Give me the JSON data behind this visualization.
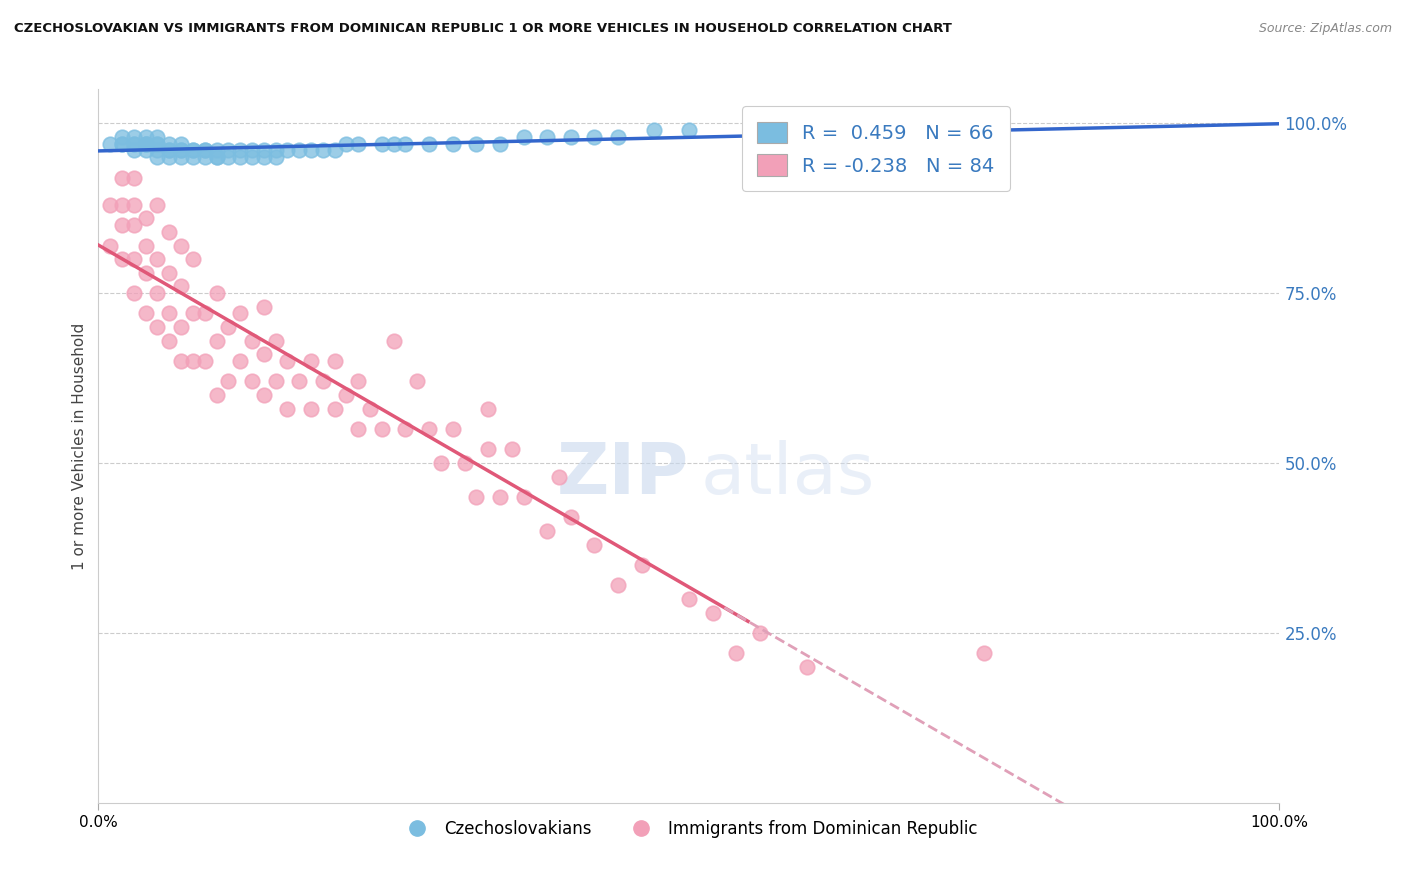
{
  "title": "CZECHOSLOVAKIAN VS IMMIGRANTS FROM DOMINICAN REPUBLIC 1 OR MORE VEHICLES IN HOUSEHOLD CORRELATION CHART",
  "source": "Source: ZipAtlas.com",
  "ylabel": "1 or more Vehicles in Household",
  "xlim": [
    0.0,
    1.0
  ],
  "ylim": [
    0.0,
    1.05
  ],
  "yticks": [
    0.0,
    0.25,
    0.5,
    0.75,
    1.0
  ],
  "ytick_labels": [
    "",
    "25.0%",
    "50.0%",
    "75.0%",
    "100.0%"
  ],
  "legend_blue_label": "Czechoslovakians",
  "legend_pink_label": "Immigrants from Dominican Republic",
  "R_blue": 0.459,
  "N_blue": 66,
  "R_pink": -0.238,
  "N_pink": 84,
  "blue_color": "#7bbde0",
  "pink_color": "#f2a0b8",
  "blue_line_color": "#3366cc",
  "pink_line_color": "#e05878",
  "pink_dashed_color": "#e0a0b8",
  "watermark_zip": "ZIP",
  "watermark_atlas": "atlas",
  "blue_scatter_x": [
    0.01,
    0.02,
    0.02,
    0.02,
    0.03,
    0.03,
    0.03,
    0.03,
    0.04,
    0.04,
    0.04,
    0.04,
    0.04,
    0.05,
    0.05,
    0.05,
    0.05,
    0.05,
    0.06,
    0.06,
    0.06,
    0.06,
    0.07,
    0.07,
    0.07,
    0.07,
    0.08,
    0.08,
    0.08,
    0.09,
    0.09,
    0.09,
    0.1,
    0.1,
    0.1,
    0.11,
    0.11,
    0.12,
    0.12,
    0.13,
    0.13,
    0.14,
    0.14,
    0.15,
    0.15,
    0.16,
    0.17,
    0.18,
    0.19,
    0.2,
    0.21,
    0.22,
    0.24,
    0.25,
    0.26,
    0.28,
    0.3,
    0.32,
    0.34,
    0.36,
    0.38,
    0.4,
    0.42,
    0.44,
    0.47,
    0.5
  ],
  "blue_scatter_y": [
    0.97,
    0.97,
    0.97,
    0.98,
    0.96,
    0.97,
    0.97,
    0.98,
    0.96,
    0.97,
    0.97,
    0.97,
    0.98,
    0.95,
    0.96,
    0.97,
    0.97,
    0.98,
    0.95,
    0.96,
    0.96,
    0.97,
    0.95,
    0.96,
    0.96,
    0.97,
    0.95,
    0.96,
    0.96,
    0.95,
    0.96,
    0.96,
    0.95,
    0.95,
    0.96,
    0.95,
    0.96,
    0.95,
    0.96,
    0.95,
    0.96,
    0.95,
    0.96,
    0.95,
    0.96,
    0.96,
    0.96,
    0.96,
    0.96,
    0.96,
    0.97,
    0.97,
    0.97,
    0.97,
    0.97,
    0.97,
    0.97,
    0.97,
    0.97,
    0.98,
    0.98,
    0.98,
    0.98,
    0.98,
    0.99,
    0.99
  ],
  "pink_scatter_x": [
    0.01,
    0.01,
    0.02,
    0.02,
    0.02,
    0.02,
    0.03,
    0.03,
    0.03,
    0.03,
    0.03,
    0.04,
    0.04,
    0.04,
    0.04,
    0.05,
    0.05,
    0.05,
    0.05,
    0.06,
    0.06,
    0.06,
    0.06,
    0.07,
    0.07,
    0.07,
    0.07,
    0.08,
    0.08,
    0.08,
    0.09,
    0.09,
    0.1,
    0.1,
    0.1,
    0.11,
    0.11,
    0.12,
    0.12,
    0.13,
    0.13,
    0.14,
    0.14,
    0.14,
    0.15,
    0.15,
    0.16,
    0.16,
    0.17,
    0.18,
    0.18,
    0.19,
    0.2,
    0.2,
    0.21,
    0.22,
    0.22,
    0.23,
    0.24,
    0.25,
    0.26,
    0.27,
    0.28,
    0.29,
    0.3,
    0.31,
    0.32,
    0.33,
    0.33,
    0.34,
    0.35,
    0.36,
    0.38,
    0.39,
    0.4,
    0.42,
    0.44,
    0.46,
    0.5,
    0.52,
    0.54,
    0.56,
    0.6,
    0.75
  ],
  "pink_scatter_y": [
    0.82,
    0.88,
    0.8,
    0.85,
    0.88,
    0.92,
    0.75,
    0.8,
    0.85,
    0.88,
    0.92,
    0.72,
    0.78,
    0.82,
    0.86,
    0.7,
    0.75,
    0.8,
    0.88,
    0.68,
    0.72,
    0.78,
    0.84,
    0.65,
    0.7,
    0.76,
    0.82,
    0.65,
    0.72,
    0.8,
    0.65,
    0.72,
    0.6,
    0.68,
    0.75,
    0.62,
    0.7,
    0.65,
    0.72,
    0.62,
    0.68,
    0.6,
    0.66,
    0.73,
    0.62,
    0.68,
    0.58,
    0.65,
    0.62,
    0.58,
    0.65,
    0.62,
    0.58,
    0.65,
    0.6,
    0.55,
    0.62,
    0.58,
    0.55,
    0.68,
    0.55,
    0.62,
    0.55,
    0.5,
    0.55,
    0.5,
    0.45,
    0.52,
    0.58,
    0.45,
    0.52,
    0.45,
    0.4,
    0.48,
    0.42,
    0.38,
    0.32,
    0.35,
    0.3,
    0.28,
    0.22,
    0.25,
    0.2,
    0.22
  ]
}
